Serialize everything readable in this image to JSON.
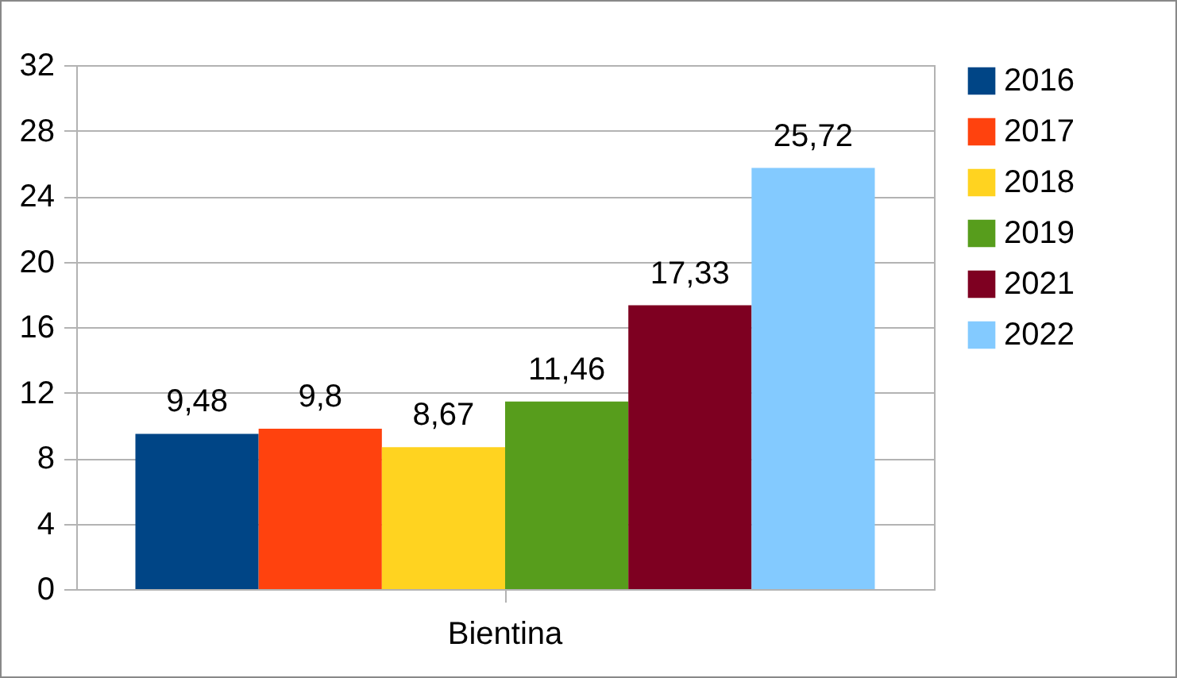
{
  "chart_data": {
    "type": "bar",
    "categories": [
      "Bientina"
    ],
    "series": [
      {
        "name": "2016",
        "color": "#004586",
        "values": [
          9.48
        ],
        "value_labels": [
          "9,48"
        ]
      },
      {
        "name": "2017",
        "color": "#ff420e",
        "values": [
          9.8
        ],
        "value_labels": [
          "9,8"
        ]
      },
      {
        "name": "2018",
        "color": "#ffd320",
        "values": [
          8.67
        ],
        "value_labels": [
          "8,67"
        ]
      },
      {
        "name": "2019",
        "color": "#579d1c",
        "values": [
          11.46
        ],
        "value_labels": [
          "11,46"
        ]
      },
      {
        "name": "2021",
        "color": "#7e0021",
        "values": [
          17.33
        ],
        "value_labels": [
          "17,33"
        ]
      },
      {
        "name": "2022",
        "color": "#83caff",
        "values": [
          25.72
        ],
        "value_labels": [
          "25,72"
        ]
      }
    ],
    "ylim": [
      0,
      32
    ],
    "yticks": [
      0,
      4,
      8,
      12,
      16,
      20,
      24,
      28,
      32
    ],
    "grid": "y",
    "legend": "right"
  }
}
